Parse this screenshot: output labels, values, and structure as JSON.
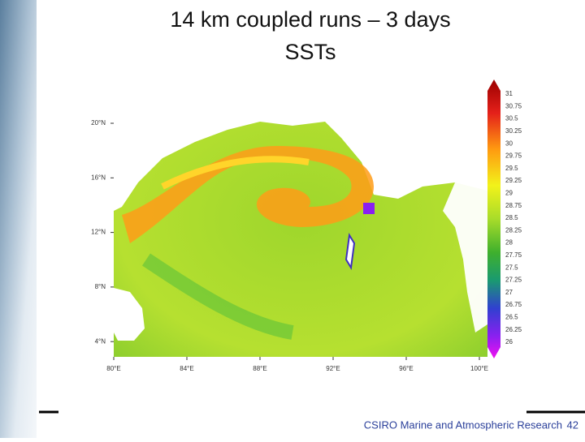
{
  "header": {
    "title_lines": [
      "14 km coupled runs – 3 days",
      "SSTs"
    ]
  },
  "map": {
    "latitude_labels": [
      "20°N",
      "16°N",
      "12°N",
      "8°N",
      "4°N"
    ],
    "longitude_labels": [
      "80°E",
      "84°E",
      "88°E",
      "92°E",
      "96°E",
      "100°E"
    ],
    "colorbar_labels": [
      "31",
      "30.75",
      "30.5",
      "30.25",
      "30",
      "29.75",
      "29.5",
      "29.25",
      "29",
      "28.75",
      "28.5",
      "28.25",
      "28",
      "27.75",
      "27.5",
      "27.25",
      "27",
      "26.75",
      "26.5",
      "26.25",
      "26"
    ]
  },
  "footer": {
    "organization": "CSIRO Marine and Atmospheric Research",
    "page_number": "42"
  }
}
